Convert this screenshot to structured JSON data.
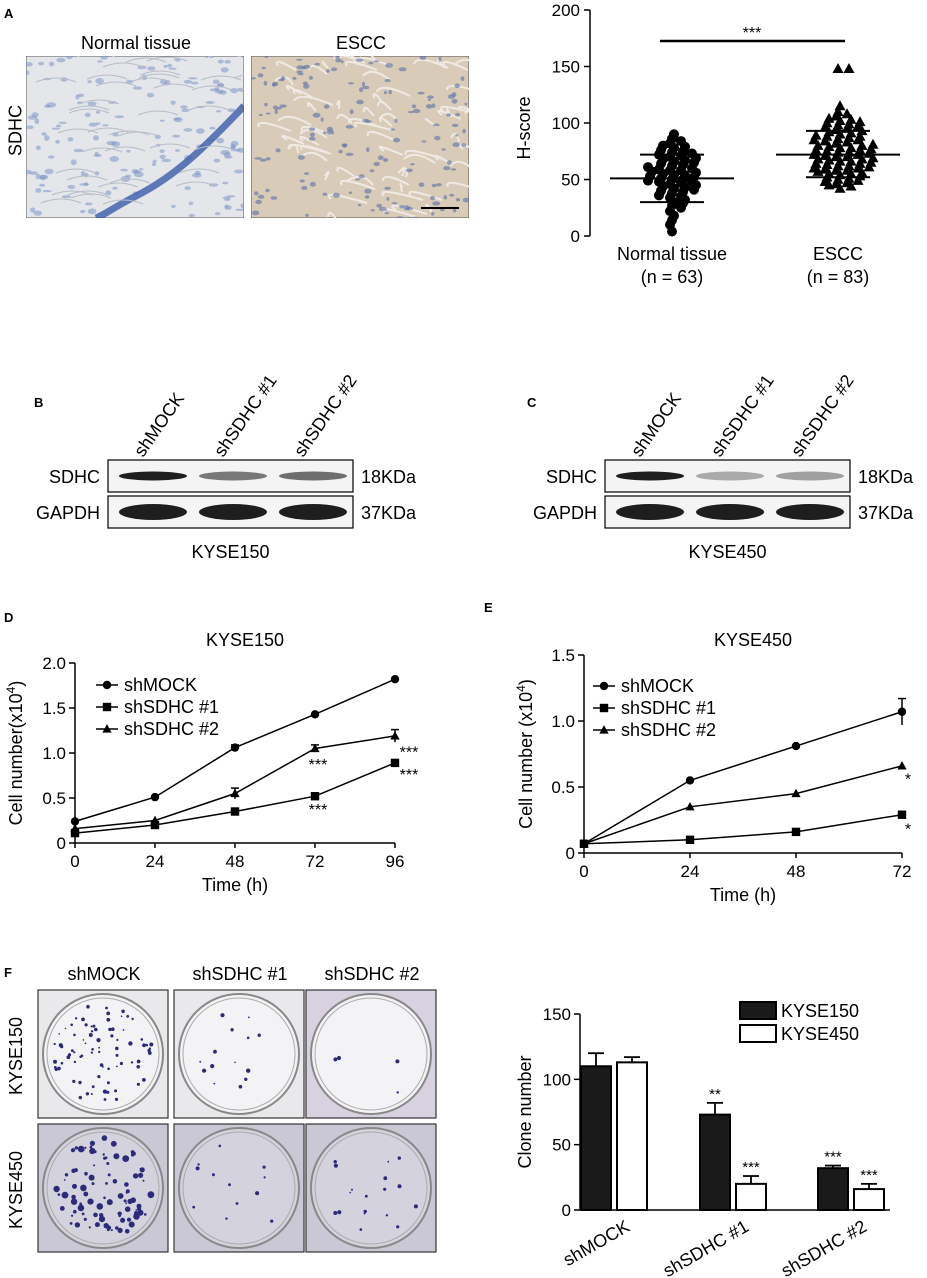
{
  "colors": {
    "ink": "#000000",
    "tissue_blue": "#6f8fc6",
    "tissue_escc": "#c9b7a0",
    "plate_bg": "#d9d6de",
    "colony": "#2b2b7a"
  },
  "panel_letters": {
    "a": "A",
    "b": "B",
    "c": "C",
    "d": "D",
    "e": "E",
    "f": "F"
  },
  "panel_a": {
    "row_label": "SDHC",
    "img_normal_label": "Normal tissue",
    "img_escc_label": "ESCC",
    "chart": {
      "type": "scatter",
      "ylabel": "H-score",
      "ylim": [
        0,
        200
      ],
      "yticks": [
        "0",
        "50",
        "100",
        "150",
        "200"
      ],
      "groups": [
        {
          "name": "Normal tissue",
          "n_label": "(n = 63)",
          "marker": "circle",
          "mean": 51,
          "sd_low": 30,
          "sd_high": 72,
          "points": [
            4,
            10,
            14,
            18,
            22,
            25,
            27,
            29,
            30,
            32,
            34,
            35,
            36,
            38,
            39,
            40,
            41,
            42,
            43,
            44,
            45,
            46,
            47,
            48,
            48,
            49,
            50,
            50,
            51,
            52,
            53,
            54,
            54,
            55,
            56,
            57,
            58,
            58,
            59,
            60,
            61,
            62,
            63,
            64,
            65,
            66,
            67,
            68,
            69,
            70,
            71,
            72,
            73,
            74,
            75,
            76,
            78,
            79,
            80,
            82,
            84,
            86,
            90
          ]
        },
        {
          "name": "ESCC",
          "n_label": "(n = 83)",
          "marker": "triangle",
          "mean": 72,
          "sd_low": 52,
          "sd_high": 93,
          "points": [
            42,
            44,
            45,
            46,
            47,
            48,
            49,
            50,
            51,
            52,
            53,
            54,
            55,
            55,
            56,
            57,
            58,
            58,
            59,
            60,
            60,
            61,
            62,
            62,
            63,
            64,
            64,
            65,
            66,
            66,
            67,
            68,
            68,
            69,
            70,
            70,
            71,
            72,
            72,
            73,
            74,
            74,
            75,
            76,
            76,
            77,
            78,
            78,
            79,
            80,
            80,
            81,
            82,
            83,
            84,
            85,
            85,
            86,
            87,
            88,
            88,
            89,
            90,
            91,
            92,
            93,
            94,
            95,
            96,
            97,
            98,
            99,
            100,
            101,
            102,
            103,
            104,
            106,
            108,
            110,
            115,
            148,
            148
          ]
        }
      ],
      "significance": "***"
    }
  },
  "panel_b": {
    "lanes": [
      "shMOCK",
      "shSDHC #1",
      "shSDHC #2"
    ],
    "rows": [
      "SDHC",
      "GAPDH"
    ],
    "sizes": [
      "18KDa",
      "37KDa"
    ],
    "cell_line": "KYSE150",
    "sdhc_intensity": [
      1.0,
      0.55,
      0.6
    ],
    "gapdh_intensity": [
      1.0,
      1.0,
      1.0
    ]
  },
  "panel_c": {
    "lanes": [
      "shMOCK",
      "shSDHC #1",
      "shSDHC #2"
    ],
    "rows": [
      "SDHC",
      "GAPDH"
    ],
    "sizes": [
      "18KDa",
      "37KDa"
    ],
    "cell_line": "KYSE450",
    "sdhc_intensity": [
      1.0,
      0.3,
      0.35
    ],
    "gapdh_intensity": [
      1.0,
      1.0,
      1.0
    ]
  },
  "chart_data": [
    {
      "type": "line",
      "title": "KYSE150",
      "xlabel": "Time (h)",
      "ylabel": "Cell number(x10",
      "ylabel_sup": "4",
      "ylabel_tail": ")",
      "x": [
        0,
        24,
        48,
        72,
        96
      ],
      "xticks": [
        "0",
        "24",
        "48",
        "72",
        "96"
      ],
      "xlim": [
        0,
        96
      ],
      "ylim": [
        0,
        2.0
      ],
      "yticks": [
        "0",
        "0.5",
        "1.0",
        "1.5",
        "2.0"
      ],
      "series": [
        {
          "name": "shMOCK",
          "marker": "circle",
          "values": [
            0.24,
            0.51,
            1.06,
            1.43,
            1.82
          ],
          "err": [
            0,
            0,
            0.03,
            0,
            0
          ]
        },
        {
          "name": "shSDHC #1",
          "marker": "square",
          "values": [
            0.11,
            0.2,
            0.35,
            0.52,
            0.89
          ],
          "err": [
            0,
            0,
            0,
            0.02,
            0
          ]
        },
        {
          "name": "shSDHC #2",
          "marker": "triangle",
          "values": [
            0.16,
            0.25,
            0.55,
            1.05,
            1.19
          ],
          "err": [
            0,
            0,
            0.06,
            0.04,
            0.07
          ]
        }
      ],
      "annotations": [
        {
          "x": 72,
          "y": 0.9,
          "text": "***"
        },
        {
          "x": 72,
          "y": 0.4,
          "text": "***"
        },
        {
          "x": 96,
          "y": 1.04,
          "text": "***"
        },
        {
          "x": 96,
          "y": 0.79,
          "text": "***"
        }
      ]
    },
    {
      "type": "line",
      "title": "KYSE450",
      "xlabel": "Time (h)",
      "ylabel": "Cell number (x10",
      "ylabel_sup": "4",
      "ylabel_tail": ")",
      "x": [
        0,
        24,
        48,
        72
      ],
      "xticks": [
        "0",
        "24",
        "48",
        "72"
      ],
      "xlim": [
        0,
        72
      ],
      "ylim": [
        0,
        1.5
      ],
      "yticks": [
        "0",
        "0.5",
        "1.0",
        "1.5"
      ],
      "series": [
        {
          "name": "shMOCK",
          "marker": "circle",
          "values": [
            0.07,
            0.55,
            0.81,
            1.07
          ],
          "err": [
            0,
            0,
            0,
            0.1
          ]
        },
        {
          "name": "shSDHC #1",
          "marker": "square",
          "values": [
            0.07,
            0.1,
            0.16,
            0.29
          ],
          "err": [
            0,
            0,
            0,
            0
          ]
        },
        {
          "name": "shSDHC #2",
          "marker": "triangle",
          "values": [
            0.07,
            0.35,
            0.45,
            0.66
          ],
          "err": [
            0,
            0,
            0,
            0
          ]
        }
      ],
      "annotations": [
        {
          "x": 72,
          "y": 0.58,
          "text": "*"
        },
        {
          "x": 72,
          "y": 0.2,
          "text": "*"
        }
      ]
    },
    {
      "type": "bar",
      "ylabel": "Clone number",
      "categories": [
        "shMOCK",
        "shSDHC #1",
        "shSDHC #2"
      ],
      "ylim": [
        0,
        150
      ],
      "yticks": [
        "0",
        "50",
        "100",
        "150"
      ],
      "series": [
        {
          "name": "KYSE150",
          "fill": "#1a1a1a",
          "values": [
            110,
            73,
            32
          ],
          "err": [
            10,
            9,
            2
          ],
          "sig": [
            "",
            "**",
            "***"
          ]
        },
        {
          "name": "KYSE450",
          "fill": "#ffffff",
          "values": [
            113,
            20,
            16
          ],
          "err": [
            4,
            6,
            4
          ],
          "sig": [
            "",
            "***",
            "***"
          ]
        }
      ]
    }
  ],
  "panel_f": {
    "col_labels": [
      "shMOCK",
      "shSDHC #1",
      "shSDHC #2"
    ],
    "row_labels": [
      "KYSE150",
      "KYSE450"
    ],
    "colony_counts": [
      [
        80,
        14,
        4
      ],
      [
        95,
        12,
        18
      ]
    ]
  }
}
